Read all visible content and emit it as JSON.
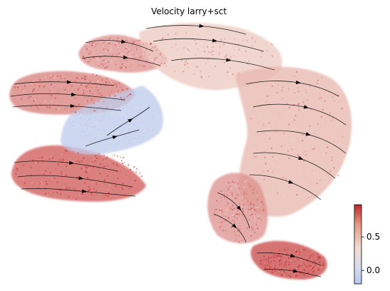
{
  "chart_data": {
    "type": "scatter",
    "title": "Velocity larry+sct",
    "xlabel": "",
    "ylabel": "",
    "grid": false,
    "axes_visible": false,
    "overlay": "velocity stream arrows",
    "point_color_scale": "coolwarm",
    "colors": {
      "low": "#b4c8f2",
      "mid": "#f2dcd2",
      "high": "#c0282a",
      "arrow": "#000000"
    },
    "colorbar": {
      "range": [
        -0.2,
        0.98
      ],
      "ticks": [
        {
          "value": 0.5,
          "label": "0.5"
        },
        {
          "value": 0.0,
          "label": "0.0"
        }
      ],
      "placement": "bottom-right"
    },
    "regions": [
      {
        "name": "upper-left-arm",
        "value": 0.7
      },
      {
        "name": "left-arm",
        "value": 0.75
      },
      {
        "name": "lower-left-arm",
        "value": 0.85
      },
      {
        "name": "center-junction",
        "value": 0.1
      },
      {
        "name": "top-middle",
        "value": 0.55
      },
      {
        "name": "right-arm",
        "value": 0.6
      },
      {
        "name": "lower-right-arm",
        "value": 0.7
      },
      {
        "name": "bottom-tip",
        "value": 0.9
      }
    ]
  }
}
